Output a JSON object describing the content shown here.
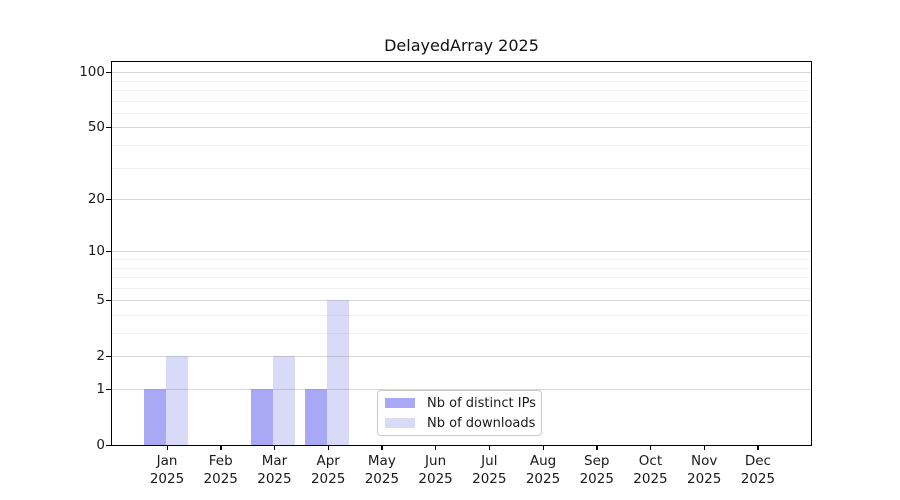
{
  "chart_data": {
    "type": "bar",
    "title": "DelayedArray 2025",
    "categories": [
      "Jan 2025",
      "Feb 2025",
      "Mar 2025",
      "Apr 2025",
      "May 2025",
      "Jun 2025",
      "Jul 2025",
      "Aug 2025",
      "Sep 2025",
      "Oct 2025",
      "Nov 2025",
      "Dec 2025"
    ],
    "series": [
      {
        "name": "Nb of distinct IPs",
        "color": "#a8a8f5",
        "values": [
          1,
          0,
          1,
          1,
          0,
          0,
          0,
          0,
          0,
          0,
          0,
          0
        ]
      },
      {
        "name": "Nb of downloads",
        "color": "#d9d9f8",
        "values": [
          2,
          0,
          2,
          5,
          0,
          0,
          0,
          0,
          0,
          0,
          0,
          0
        ]
      }
    ],
    "yscale": "log1p",
    "ylim": [
      0,
      100
    ],
    "yticks": [
      0,
      1,
      2,
      5,
      10,
      20,
      50,
      100
    ],
    "minor_gridlines": [
      3,
      4,
      6,
      7,
      8,
      9,
      30,
      40,
      60,
      70,
      80,
      90
    ],
    "grid": true,
    "legend_position": "inside lower-center"
  },
  "colors": {
    "major_grid": "rgba(140,140,140,0.35)",
    "minor_grid": "rgba(160,160,160,0.16)",
    "axis": "#000000",
    "text": "#1a1a1a",
    "background": "#ffffff"
  }
}
